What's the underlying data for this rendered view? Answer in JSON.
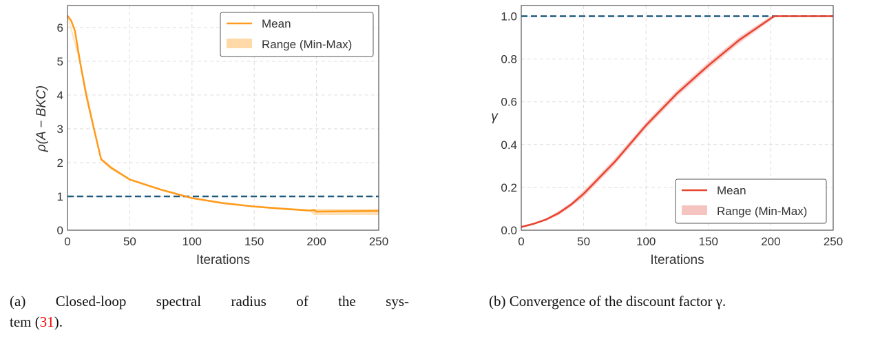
{
  "chart_data": [
    {
      "type": "line",
      "xlabel": "Iterations",
      "ylabel": "ρ(A − BKC)",
      "xlim": [
        0,
        250
      ],
      "ylim": [
        0,
        6.65
      ],
      "xticks": [
        "0",
        "50",
        "100",
        "150",
        "200",
        "250"
      ],
      "yticks": [
        "0",
        "1",
        "2",
        "3",
        "4",
        "5",
        "6"
      ],
      "grid": true,
      "legend_position": "top-right",
      "reference_line": {
        "y": 1,
        "color": "#1f5a7e",
        "style": "dashed"
      },
      "color": "#ff9a1a",
      "band_color": "#ffd9a8",
      "series": [
        {
          "name": "Mean",
          "x": [
            0,
            3,
            6,
            10,
            15,
            20,
            27,
            35,
            50,
            75,
            100,
            125,
            150,
            175,
            195,
            198,
            200,
            250
          ],
          "values": [
            6.35,
            6.2,
            5.9,
            5.0,
            4.0,
            3.2,
            2.1,
            1.85,
            1.5,
            1.2,
            0.95,
            0.8,
            0.7,
            0.63,
            0.58,
            0.6,
            0.55,
            0.57
          ]
        },
        {
          "name": "Range (Min-Max)",
          "x": [
            0,
            10,
            20,
            27,
            35,
            50,
            75,
            100,
            125,
            150,
            175,
            195,
            198,
            200,
            250
          ],
          "min": [
            6.3,
            4.9,
            3.1,
            2.05,
            1.8,
            1.47,
            1.17,
            0.92,
            0.77,
            0.67,
            0.6,
            0.55,
            0.45,
            0.45,
            0.45
          ],
          "max": [
            6.4,
            5.1,
            3.35,
            2.15,
            1.9,
            1.53,
            1.23,
            0.98,
            0.83,
            0.73,
            0.66,
            0.62,
            0.63,
            0.63,
            0.63
          ]
        }
      ]
    },
    {
      "type": "line",
      "xlabel": "Iterations",
      "ylabel": "γ",
      "xlim": [
        0,
        250
      ],
      "ylim": [
        0,
        1.05
      ],
      "xticks": [
        "0",
        "50",
        "100",
        "150",
        "200",
        "250"
      ],
      "yticks": [
        "0.0",
        "0.2",
        "0.4",
        "0.6",
        "0.8",
        "1.0"
      ],
      "grid": true,
      "legend_position": "bottom-right",
      "reference_line": {
        "y": 1.0,
        "color": "#1f5a7e",
        "style": "dashed"
      },
      "color": "#e8432e",
      "band_color": "#f5c4c0",
      "series": [
        {
          "name": "Mean",
          "x": [
            0,
            10,
            20,
            30,
            40,
            50,
            60,
            75,
            100,
            125,
            150,
            175,
            200,
            203,
            250
          ],
          "values": [
            0.015,
            0.03,
            0.05,
            0.08,
            0.12,
            0.17,
            0.23,
            0.32,
            0.49,
            0.64,
            0.77,
            0.89,
            0.99,
            1.0,
            1.0
          ]
        },
        {
          "name": "Range (Min-Max)",
          "x": [
            0,
            10,
            20,
            30,
            40,
            50,
            60,
            75,
            100,
            125,
            150,
            175,
            200,
            203,
            250
          ],
          "min": [
            0.01,
            0.025,
            0.045,
            0.07,
            0.11,
            0.155,
            0.215,
            0.305,
            0.475,
            0.625,
            0.755,
            0.875,
            0.98,
            1.0,
            1.0
          ],
          "max": [
            0.02,
            0.035,
            0.055,
            0.09,
            0.13,
            0.185,
            0.245,
            0.335,
            0.505,
            0.655,
            0.785,
            0.905,
            1.0,
            1.0,
            1.0
          ]
        }
      ]
    }
  ],
  "captions": {
    "a_line1": "(a)  Closed-loop spectral radius of the sys-",
    "a_line2_pre": "tem (",
    "a_ref": "31",
    "a_line2_post": ").",
    "b": "(b) Convergence of the discount factor γ."
  }
}
